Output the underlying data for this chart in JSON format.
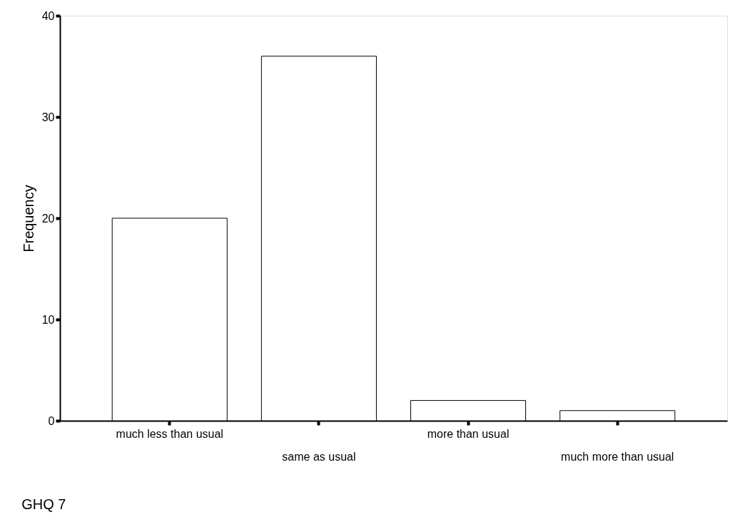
{
  "chart_data": {
    "type": "bar",
    "categories": [
      "much less than usual",
      "same as usual",
      "more than usual",
      "much more than usual"
    ],
    "values": [
      20,
      36,
      2,
      1
    ],
    "color": "#ffffff",
    "ylim": [
      0,
      40
    ],
    "yticks": [
      0,
      10,
      20,
      30,
      40
    ],
    "ylabel": "Frequency",
    "grid": false,
    "annotations": [
      "GHQ 7"
    ]
  }
}
